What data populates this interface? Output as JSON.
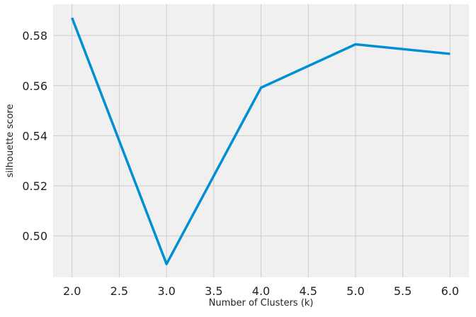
{
  "colors": {
    "figure_background": "#ffffff",
    "plot_background": "#f0f0f0",
    "grid": "#cbcbcb",
    "line": "#008fd5"
  },
  "chart_data": {
    "type": "line",
    "title": "",
    "xlabel": "Number of Clusters (k)",
    "ylabel": "silhouette score",
    "x": [
      2,
      3,
      4,
      5,
      6
    ],
    "series": [
      {
        "values": [
          0.5871,
          0.4888,
          0.5592,
          0.5765,
          0.5727
        ]
      }
    ],
    "xlim": [
      1.8,
      6.2
    ],
    "ylim": [
      0.4835,
      0.5925
    ],
    "xticks": [
      2.0,
      2.5,
      3.0,
      3.5,
      4.0,
      4.5,
      5.0,
      5.5,
      6.0
    ],
    "xtick_labels": [
      "2.0",
      "2.5",
      "3.0",
      "3.5",
      "4.0",
      "4.5",
      "5.0",
      "5.5",
      "6.0"
    ],
    "yticks": [
      0.5,
      0.52,
      0.54,
      0.56,
      0.58
    ],
    "ytick_labels": [
      "0.50",
      "0.52",
      "0.54",
      "0.56",
      "0.58"
    ],
    "grid": true,
    "legend": "none"
  }
}
